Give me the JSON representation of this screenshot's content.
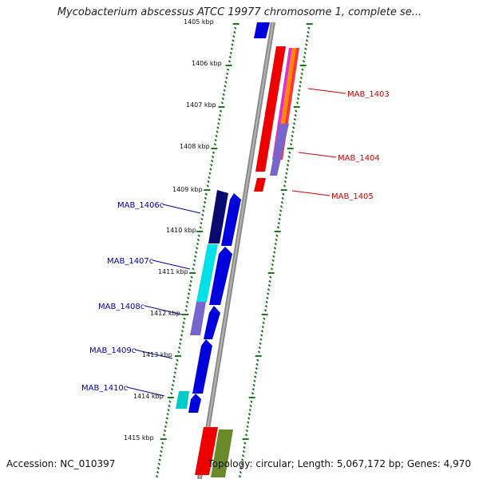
{
  "title": "Mycobacterium abscessus ATCC 19977 chromosome 1, complete se...",
  "accession": "Accession: NC_010397",
  "summary": "Topology: circular; Length: 5,067,172 bp; Genes: 4,970",
  "kbp_labels": [
    "1405 kbp",
    "1406 kbp",
    "1407 kbp",
    "1408 kbp",
    "1409 kbp",
    "1410 kbp",
    "1411 kbp",
    "1412 kbp",
    "1413 kbp",
    "1414 kbp",
    "1415 kbp"
  ],
  "gene_labels_forward": [
    "MAB_1403",
    "MAB_1404",
    "MAB_1405"
  ],
  "gene_labels_reverse": [
    "MAB_1406c",
    "MAB_1407c",
    "MAB_1408c",
    "MAB_1409c",
    "MAB_1410c"
  ],
  "colors": {
    "forward_label": "#cc0000",
    "reverse_label": "#0000aa",
    "backbone": "#888888",
    "ruler": "#1a7a1a",
    "red_gene": "#ee0000",
    "blue_gene": "#0000dd",
    "navy_gene": "#0a0a70",
    "cyan_gene": "#00e0e8",
    "purple_gene": "#7766cc",
    "olive_gene": "#6a8a2a"
  }
}
